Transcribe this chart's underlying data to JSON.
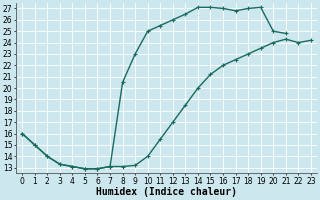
{
  "xlabel": "Humidex (Indice chaleur)",
  "background_color": "#cce8ee",
  "line_color": "#1a6b5e",
  "grid_color": "#ffffff",
  "xlim": [
    -0.5,
    23.5
  ],
  "ylim": [
    12.5,
    27.5
  ],
  "xticks": [
    0,
    1,
    2,
    3,
    4,
    5,
    6,
    7,
    8,
    9,
    10,
    11,
    12,
    13,
    14,
    15,
    16,
    17,
    18,
    19,
    20,
    21,
    22,
    23
  ],
  "yticks": [
    13,
    14,
    15,
    16,
    17,
    18,
    19,
    20,
    21,
    22,
    23,
    24,
    25,
    26,
    27
  ],
  "curve1_x": [
    0,
    1,
    2,
    3,
    4,
    5,
    6,
    7,
    8,
    9,
    10,
    11,
    12,
    13,
    14,
    15,
    16,
    17,
    18,
    19,
    20,
    21
  ],
  "curve1_y": [
    16,
    15,
    14,
    13.3,
    13.1,
    12.9,
    12.9,
    13.1,
    20.5,
    23,
    25,
    25.5,
    26,
    26.5,
    27.1,
    27.1,
    27.0,
    26.8,
    27.0,
    27.1,
    25.0,
    24.8
  ],
  "curve2_x": [
    0,
    1,
    2,
    3,
    4,
    5,
    6,
    7,
    8,
    9,
    10,
    11,
    12,
    13,
    14,
    15,
    16,
    17,
    18,
    19,
    20,
    21,
    22,
    23
  ],
  "curve2_y": [
    16,
    15,
    14,
    13.3,
    13.1,
    12.9,
    12.9,
    13.1,
    13.1,
    13.2,
    14.0,
    15.5,
    17.0,
    18.5,
    20.0,
    21.2,
    22.0,
    22.5,
    23.0,
    23.5,
    24.0,
    24.3,
    24.0,
    24.2
  ],
  "linewidth": 1.0,
  "font_size_label": 7,
  "font_size_tick": 5.5
}
